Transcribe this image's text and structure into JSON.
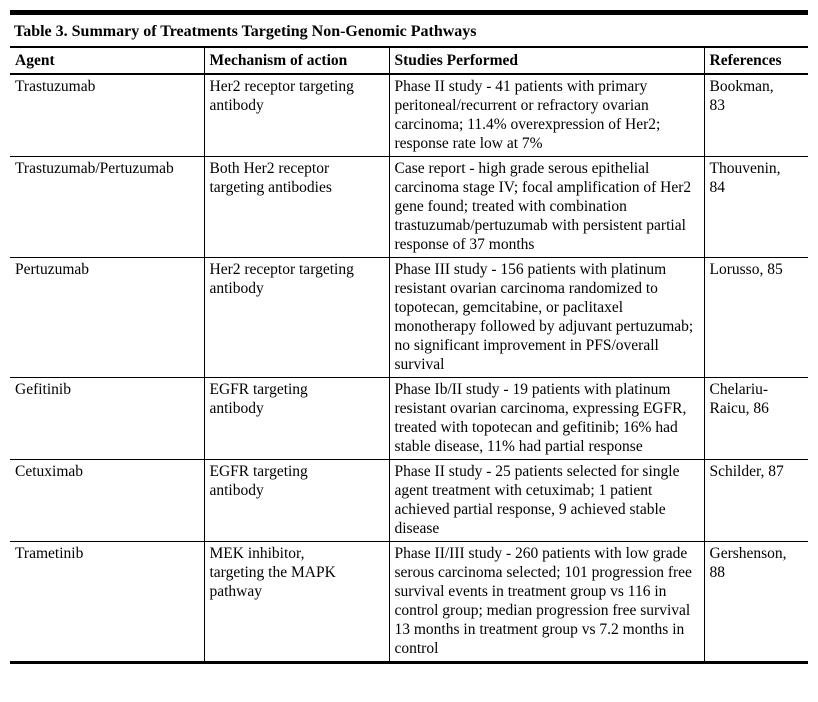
{
  "document": {
    "title": "Table 3. Summary of Treatments Targeting Non-Genomic Pathways"
  },
  "table": {
    "columns": [
      "Agent",
      "Mechanism of action",
      "Studies Performed",
      "References"
    ],
    "rows": [
      {
        "agent": "Trastuzumab",
        "mechanism": "Her2 receptor targeting antibody",
        "studies": "Phase II study - 41 patients with primary peritoneal/recurrent or refractory ovarian carcinoma; 11.4% overexpression of Her2; response rate low at 7%",
        "references": "Bookman, 83"
      },
      {
        "agent": "Trastuzumab/Pertuzumab",
        "mechanism": "Both Her2 receptor targeting antibodies",
        "studies": "Case report - high grade serous epithelial carcinoma stage IV; focal amplification of Her2 gene found; treated with combination trastuzumab/pertuzumab with persistent partial response of 37 months",
        "references": "Thouvenin, 84"
      },
      {
        "agent": "Pertuzumab",
        "mechanism": "Her2 receptor targeting antibody",
        "studies": "Phase III study - 156 patients with platinum resistant ovarian carcinoma randomized to topotecan, gemcitabine, or paclitaxel monotherapy followed by adjuvant pertuzumab; no significant improvement in PFS/overall survival",
        "references": "Lorusso, 85"
      },
      {
        "agent": "Gefitinib",
        "mechanism": "EGFR targeting antibody",
        "studies": "Phase Ib/II study - 19 patients with platinum resistant ovarian carcinoma, expressing EGFR, treated with topotecan and gefitinib; 16% had stable disease, 11% had partial response",
        "references": "Chelariu-Raicu, 86"
      },
      {
        "agent": "Cetuximab",
        "mechanism": "EGFR targeting antibody",
        "studies": "Phase II study - 25 patients selected for single agent treatment with cetuximab; 1 patient achieved partial response, 9 achieved stable disease",
        "references": "Schilder, 87"
      },
      {
        "agent": "Trametinib",
        "mechanism": "MEK inhibitor, targeting the MAPK pathway",
        "studies": "Phase II/III study - 260 patients with low grade serous carcinoma selected; 101 progression free survival events in treatment group vs 116 in control group; median progression free survival 13 months in treatment group vs 7.2 months in control",
        "references": "Gershenson, 88"
      }
    ]
  },
  "colors": {
    "text": "#000000",
    "border": "#000000",
    "background": "#ffffff"
  }
}
